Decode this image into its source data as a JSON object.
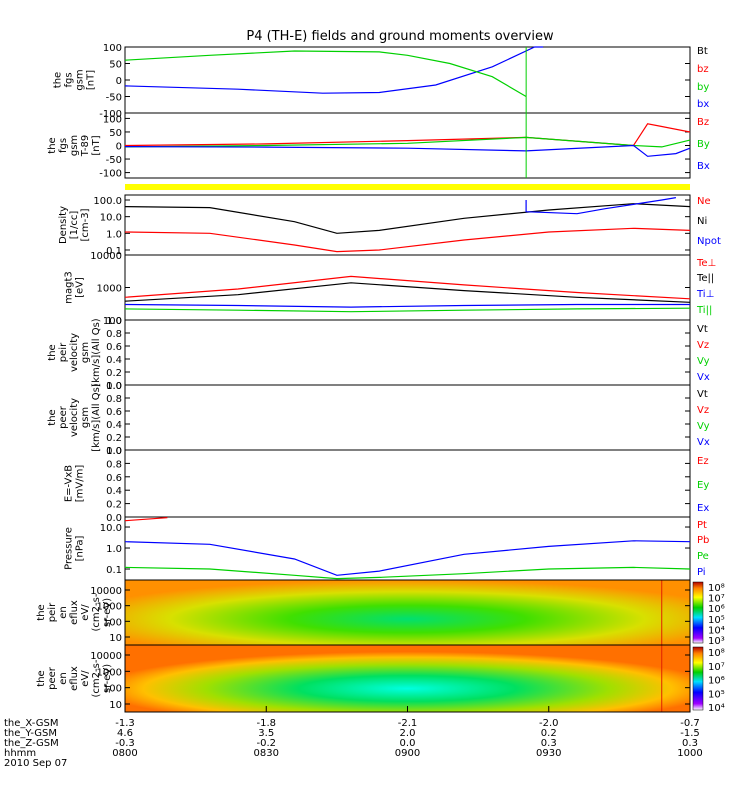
{
  "title": "P4 (TH-E) fields and ground moments overview",
  "x_axis": {
    "time_ticks": [
      "0800",
      "0830",
      "0900",
      "0930",
      "1000"
    ],
    "rows": [
      {
        "label": "the_X-GSM",
        "values": [
          "-1.3",
          "-1.8",
          "-2.1",
          "-2.0",
          "-0.7"
        ]
      },
      {
        "label": "the_Y-GSM",
        "values": [
          "4.6",
          "3.5",
          "2.0",
          "0.2",
          "-1.5"
        ]
      },
      {
        "label": "the_Z-GSM",
        "values": [
          "-0.3",
          "-0.2",
          "0.0",
          "0.3",
          "0.3"
        ]
      },
      {
        "label": "hhmm",
        "values": [
          "0800",
          "0830",
          "0900",
          "0930",
          "1000"
        ]
      }
    ],
    "date": "2010 Sep 07"
  },
  "colors": {
    "black": "#000000",
    "red": "#ff0000",
    "green": "#00d000",
    "blue": "#0000ff",
    "yellow": "#ffff00"
  },
  "chart_data": [
    {
      "id": "fgs",
      "type": "line",
      "ylabel": [
        "the",
        "fgs",
        "gsm",
        "[nT]"
      ],
      "yticks": [
        "100",
        "50",
        "0",
        "-50",
        "-100"
      ],
      "ylim": [
        -100,
        100
      ],
      "legend": [
        "Bt",
        "bz",
        "by",
        "bx"
      ],
      "series": [
        {
          "name": "bx",
          "color": "blue",
          "x": [
            8.0,
            8.4,
            8.7,
            8.9,
            9.1,
            9.3,
            9.45,
            9.48
          ],
          "y": [
            -18,
            -28,
            -40,
            -38,
            -15,
            40,
            110,
            150
          ]
        },
        {
          "name": "by",
          "color": "green",
          "x": [
            8.0,
            8.3,
            8.6,
            8.9,
            9.0,
            9.15,
            9.3,
            9.42
          ],
          "y": [
            60,
            75,
            88,
            85,
            75,
            50,
            10,
            -50
          ]
        }
      ]
    },
    {
      "id": "fgl",
      "type": "line",
      "ylabel": [
        "the",
        "fgs",
        "gsm",
        "T-89",
        "[nT]"
      ],
      "yticks": [
        "100",
        "50",
        "0",
        "-50",
        "-100"
      ],
      "ylim": [
        -120,
        120
      ],
      "legend": [
        "Bz",
        "By",
        "Bx"
      ],
      "series": [
        {
          "name": "Bz",
          "color": "red",
          "x": [
            8.0,
            8.5,
            9.0,
            9.42,
            9.8,
            9.85,
            9.9,
            10.0
          ],
          "y": [
            0,
            6,
            18,
            30,
            0,
            80,
            70,
            50
          ]
        },
        {
          "name": "By",
          "color": "green",
          "x": [
            8.0,
            8.5,
            9.0,
            9.42,
            9.8,
            9.9,
            10.0
          ],
          "y": [
            -5,
            0,
            8,
            30,
            0,
            -5,
            20
          ]
        },
        {
          "name": "Bx",
          "color": "blue",
          "x": [
            8.0,
            8.5,
            9.0,
            9.42,
            9.8,
            9.85,
            9.95,
            10.0
          ],
          "y": [
            -4,
            -6,
            -10,
            -20,
            0,
            -40,
            -30,
            -10
          ]
        }
      ]
    },
    {
      "id": "flag",
      "type": "area",
      "ylabel": [],
      "color": "yellow"
    },
    {
      "id": "density",
      "type": "line",
      "ylabel": [
        "Density",
        "[1/cc]",
        "[cm-3]"
      ],
      "yscale": "log",
      "ylim": [
        0.05,
        200
      ],
      "yticks": [
        "100.0",
        "10.0",
        "1.0",
        "0.1"
      ],
      "legend": [
        "Ne",
        "Ni",
        "Npot"
      ],
      "series": [
        {
          "name": "Ni",
          "color": "black",
          "x": [
            8.0,
            8.3,
            8.6,
            8.75,
            8.9,
            9.2,
            9.5,
            9.8,
            10.0
          ],
          "y": [
            40,
            35,
            5,
            1,
            1.5,
            8,
            25,
            60,
            40
          ]
        },
        {
          "name": "Ne",
          "color": "red",
          "x": [
            8.0,
            8.3,
            8.6,
            8.75,
            8.9,
            9.2,
            9.5,
            9.8,
            10.0
          ],
          "y": [
            1.2,
            1.0,
            0.2,
            0.08,
            0.1,
            0.4,
            1.2,
            2,
            1.5
          ]
        },
        {
          "name": "Npot",
          "color": "blue",
          "x": [
            9.42,
            9.42,
            9.6,
            9.7,
            9.9,
            9.95
          ],
          "y": [
            100,
            20,
            15,
            30,
            100,
            140
          ]
        }
      ]
    },
    {
      "id": "temp",
      "type": "line",
      "ylabel": [
        "magt3",
        "[eV]"
      ],
      "yscale": "log",
      "ylim": [
        100,
        10000
      ],
      "yticks": [
        "10000",
        "1000",
        "100"
      ],
      "legend": [
        "Te⊥",
        "Te||",
        "Ti⊥",
        "Ti||"
      ],
      "series": [
        {
          "name": "Te⊥",
          "color": "red",
          "x": [
            8.0,
            8.4,
            8.8,
            9.2,
            9.6,
            10.0
          ],
          "y": [
            500,
            900,
            2200,
            1200,
            700,
            450
          ]
        },
        {
          "name": "Te||",
          "color": "black",
          "x": [
            8.0,
            8.4,
            8.8,
            9.2,
            9.6,
            10.0
          ],
          "y": [
            380,
            600,
            1400,
            800,
            500,
            350
          ]
        },
        {
          "name": "Ti⊥",
          "color": "blue",
          "x": [
            8.0,
            8.4,
            8.8,
            9.2,
            9.6,
            10.0
          ],
          "y": [
            300,
            280,
            250,
            280,
            300,
            300
          ]
        },
        {
          "name": "Ti||",
          "color": "green",
          "x": [
            8.0,
            8.4,
            8.8,
            9.2,
            9.6,
            10.0
          ],
          "y": [
            220,
            200,
            180,
            200,
            220,
            230
          ]
        }
      ]
    },
    {
      "id": "peir",
      "type": "line",
      "ylabel": [
        "the",
        "peir",
        "velocity",
        "gsm",
        "[km/s](All Qs)"
      ],
      "ylim": [
        0,
        1
      ],
      "yticks": [
        "1.0",
        "0.8",
        "0.6",
        "0.4",
        "0.2",
        "0.0"
      ],
      "legend": [
        "Vt",
        "Vz",
        "Vy",
        "Vx"
      ],
      "series": []
    },
    {
      "id": "peer",
      "type": "line",
      "ylabel": [
        "the",
        "peer",
        "velocity",
        "gsm",
        "[km/s](All Qs)"
      ],
      "ylim": [
        0,
        1
      ],
      "yticks": [
        "1.0",
        "0.8",
        "0.6",
        "0.4",
        "0.2",
        "0.0"
      ],
      "legend": [
        "Vt",
        "Vz",
        "Vy",
        "Vx"
      ],
      "series": []
    },
    {
      "id": "efield",
      "type": "line",
      "ylabel": [
        "E=-VxB",
        "[mV/m]"
      ],
      "ylim": [
        0,
        1
      ],
      "yticks": [
        "1.0",
        "0.8",
        "0.6",
        "0.4",
        "0.2",
        "0.0"
      ],
      "legend": [
        "Ez",
        "Ey",
        "Ex"
      ],
      "series": []
    },
    {
      "id": "pressure",
      "type": "line",
      "ylabel": [
        "Pressure",
        "[nPa]"
      ],
      "yscale": "log",
      "ylim": [
        0.03,
        30
      ],
      "yticks": [
        "10.0",
        "1.0",
        "0.1"
      ],
      "legend": [
        "Pt",
        "Pb",
        "Pe",
        "Pi"
      ],
      "series": [
        {
          "name": "Pi",
          "color": "blue",
          "x": [
            8.0,
            8.3,
            8.6,
            8.75,
            8.9,
            9.2,
            9.5,
            9.8,
            10.0
          ],
          "y": [
            2,
            1.5,
            0.3,
            0.05,
            0.08,
            0.5,
            1.2,
            2.2,
            2
          ]
        },
        {
          "name": "Pe",
          "color": "green",
          "x": [
            8.0,
            8.3,
            8.6,
            8.75,
            8.9,
            9.2,
            9.5,
            9.8,
            10.0
          ],
          "y": [
            0.12,
            0.1,
            0.05,
            0.035,
            0.04,
            0.06,
            0.1,
            0.12,
            0.1
          ]
        },
        {
          "name": "Pt",
          "color": "red",
          "x": [
            8.0,
            8.1,
            8.15
          ],
          "y": [
            20,
            25,
            28
          ]
        }
      ]
    },
    {
      "id": "peir_spec",
      "type": "heatmap",
      "ylabel": [
        "the",
        "peir",
        "en",
        "eflux",
        "eV/",
        "(cm2-s-",
        "sr-eV)"
      ],
      "yticks": [
        "10000",
        "1000",
        "100",
        "10"
      ],
      "colorbar": {
        "ticks": [
          "10⁸",
          "10⁷",
          "10⁶",
          "10⁵",
          "10⁴",
          "10³"
        ]
      }
    },
    {
      "id": "peer_spec",
      "type": "heatmap",
      "ylabel": [
        "the",
        "peer",
        "en",
        "eflux",
        "eV/",
        "(cm2-s-",
        "sr-eV)"
      ],
      "yticks": [
        "10000",
        "1000",
        "100",
        "10"
      ],
      "colorbar": {
        "ticks": [
          "10⁸",
          "10⁷",
          "10⁶",
          "10⁵",
          "10⁴"
        ]
      }
    }
  ]
}
